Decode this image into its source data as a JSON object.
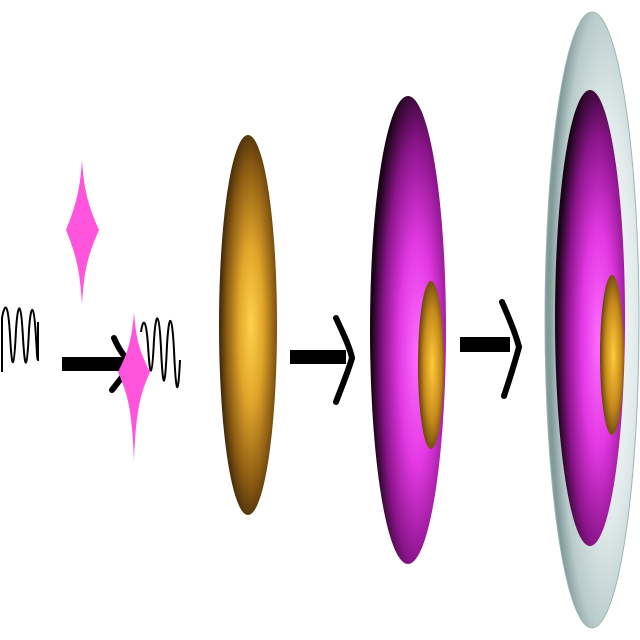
{
  "diagram": {
    "kind": "process-sequence",
    "steps": [
      {
        "id": "incoming-wave",
        "shape": "sine-wave"
      },
      {
        "id": "star-particle-top",
        "shape": "four-point-star"
      },
      {
        "id": "arrow-1",
        "shape": "arrow-right"
      },
      {
        "id": "star-particle-interaction",
        "shape": "four-point-star"
      },
      {
        "id": "outgoing-wave",
        "shape": "sine-wave"
      },
      {
        "id": "core-disc",
        "shape": "ellipsoid"
      },
      {
        "id": "arrow-2",
        "shape": "arrow-right"
      },
      {
        "id": "coated-disc",
        "shape": "ellipsoid-with-core"
      },
      {
        "id": "arrow-3",
        "shape": "arrow-right"
      },
      {
        "id": "shelled-disc",
        "shape": "ellipsoid-with-core-and-shell"
      }
    ],
    "colors": {
      "star": "#ff55dd",
      "core_light": "#ffcc3a",
      "core_mid": "#c78a1c",
      "core_dark": "#1e1206",
      "coat_light": "#ff66ff",
      "coat_mid": "#c71fc7",
      "coat_dark": "#1a0418",
      "shell_light": "#eef3f3",
      "shell_mid": "#c9d9d9",
      "shell_dark": "#7c9595",
      "stroke": "#000000"
    }
  }
}
